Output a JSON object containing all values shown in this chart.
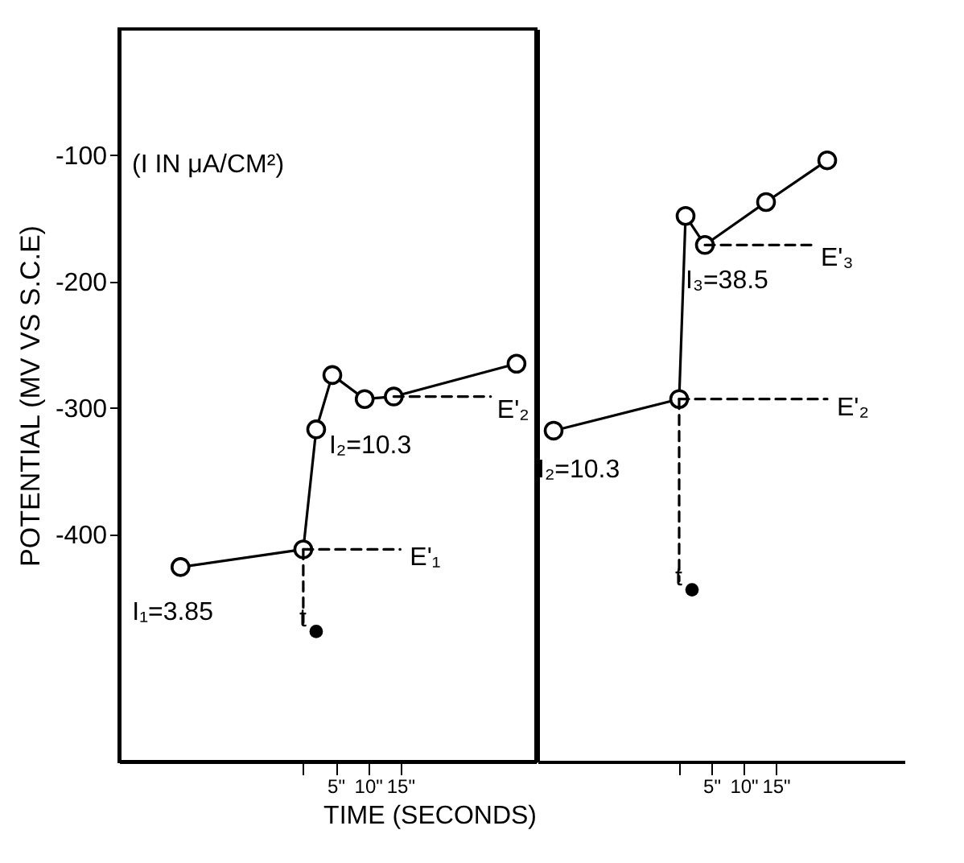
{
  "chart_data": [
    {
      "type": "line",
      "xlabel": "TIME (SECONDS)",
      "ylabel": "POTENTIAL (MV VS S.C.E)",
      "xlim": [
        -28.5,
        36
      ],
      "ylim": [
        -580,
        0
      ],
      "xticks": [
        {
          "value": 0,
          "label": null
        },
        {
          "value": 5,
          "label": "5\""
        },
        {
          "value": 10,
          "label": "10\""
        },
        {
          "value": 15,
          "label": "15\""
        }
      ],
      "yticks": [
        -400,
        -300,
        -200,
        -100
      ],
      "grid": false,
      "series": [
        {
          "color": "#000000",
          "marker": "circle",
          "x": [
            -19,
            0,
            2,
            4.5,
            9.5,
            14,
            33
          ],
          "values": [
            -426,
            -412,
            -317,
            -274,
            -293,
            -291,
            -265
          ]
        },
        {
          "color": "#000000",
          "marker": "none",
          "line_style": "dashed",
          "x": [
            0,
            0
          ],
          "values": [
            -412,
            -470
          ]
        },
        {
          "color": "#000000",
          "marker": "none",
          "line_style": "dashed",
          "x": [
            0,
            15
          ],
          "values": [
            -412,
            -412
          ]
        },
        {
          "color": "#000000",
          "marker": "none",
          "line_style": "dashed",
          "x": [
            14,
            29
          ],
          "values": [
            -291,
            -291
          ]
        },
        {
          "type": "scatter",
          "color": "#000000",
          "marker": "circle",
          "x": [
            2
          ],
          "values": [
            -477
          ]
        }
      ],
      "annotations": [
        "(I IN μA/CM²)",
        {
          "text": "I₁=3.85",
          "x": -19,
          "y": -426
        },
        {
          "text": "E'₁",
          "x": 15,
          "y": -412
        },
        {
          "text": "I₂=10.3",
          "x": 2,
          "y": -317
        },
        {
          "text": "E'₂",
          "x": 29,
          "y": -291
        },
        {
          "text": "t",
          "x": 2,
          "y": -477
        }
      ]
    },
    {
      "type": "line",
      "xlim": [
        -22,
        35
      ],
      "ylim": [
        -580,
        0
      ],
      "xticks": [
        {
          "value": 0,
          "label": null
        },
        {
          "value": 5,
          "label": "5\""
        },
        {
          "value": 10,
          "label": "10\""
        },
        {
          "value": 15,
          "label": "15\""
        }
      ],
      "tick_labels": "x",
      "grid": false,
      "series": [
        {
          "color": "#000000",
          "marker": "circle",
          "x": [
            -19.5,
            0,
            1,
            4,
            13.5,
            23
          ],
          "values": [
            -318,
            -293,
            -148,
            -171,
            -137,
            -104
          ]
        },
        {
          "color": "#000000",
          "marker": "none",
          "line_style": "dashed",
          "x": [
            0,
            0
          ],
          "values": [
            -293,
            -437
          ]
        },
        {
          "color": "#000000",
          "marker": "none",
          "line_style": "dashed",
          "x": [
            0,
            23
          ],
          "values": [
            -293,
            -293
          ]
        },
        {
          "color": "#000000",
          "marker": "none",
          "line_style": "dashed",
          "x": [
            4,
            21
          ],
          "values": [
            -171,
            -171
          ]
        },
        {
          "type": "scatter",
          "color": "#000000",
          "marker": "circle",
          "x": [
            2
          ],
          "values": [
            -444
          ]
        }
      ],
      "annotations": [
        {
          "text": "I₂=10.3",
          "x": -19.5,
          "y": -318
        },
        {
          "text": "E'₂",
          "x": 23,
          "y": -293
        },
        {
          "text": "I₃=38.5",
          "x": 4,
          "y": -171
        },
        {
          "text": "E'₃",
          "x": 21,
          "y": -171
        },
        {
          "text": "t",
          "x": 2,
          "y": -444
        }
      ]
    }
  ]
}
